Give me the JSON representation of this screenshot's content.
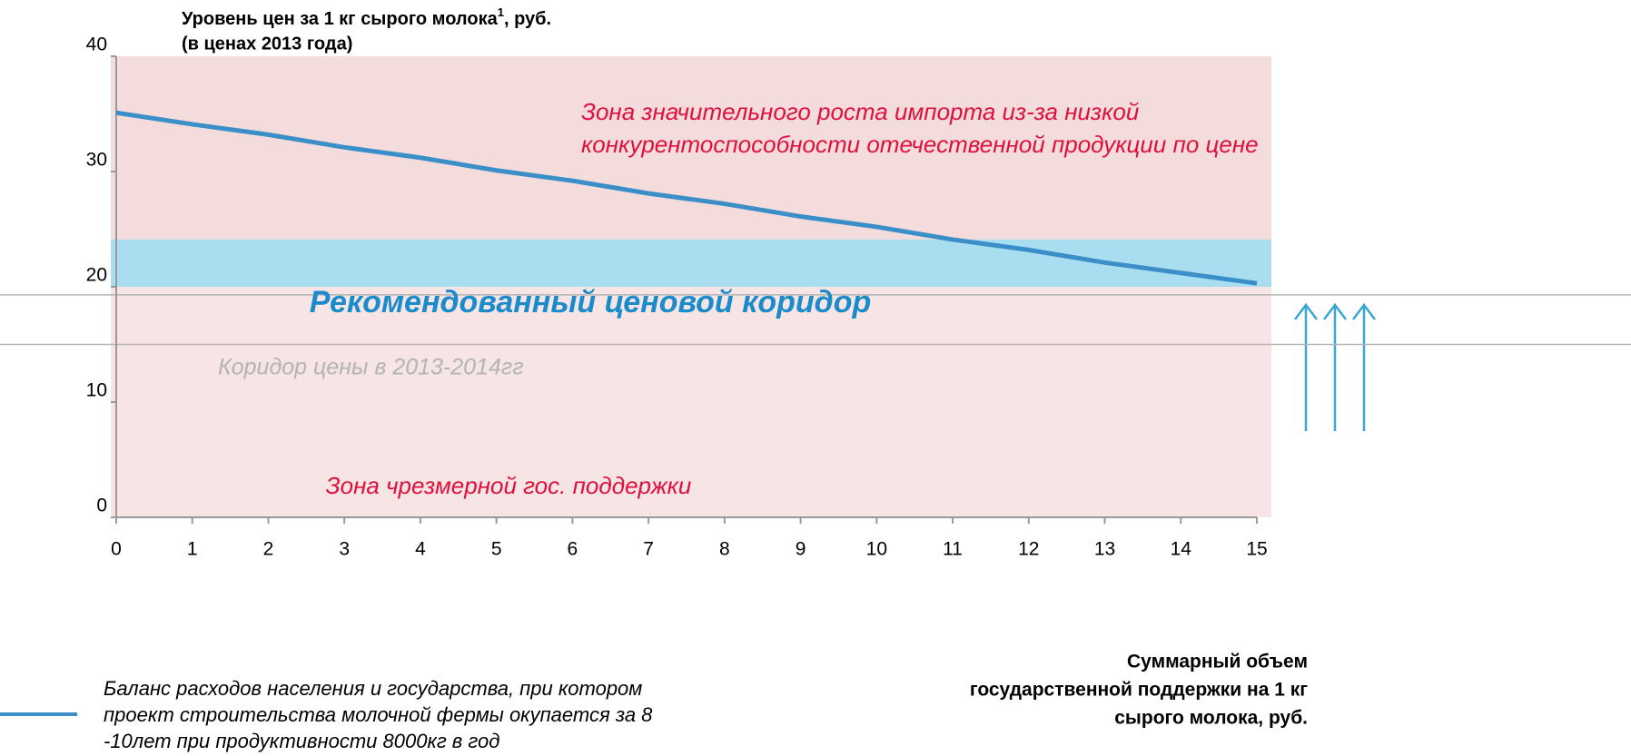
{
  "chart_data": {
    "type": "line",
    "title": [
      "Уровень цен за 1 кг сырого молока",
      "1",
      ", руб."
    ],
    "subtitle": "(в ценах 2013 года)",
    "x_label": [
      "Суммарный объем",
      "государственной поддержки на 1 кг",
      "сырого молока, руб."
    ],
    "x": [
      0,
      1,
      2,
      3,
      4,
      5,
      6,
      7,
      8,
      9,
      10,
      11,
      12,
      13,
      14,
      15
    ],
    "series": [
      {
        "name": [
          "Баланс расходов населения и государства, при котором",
          "проект строительства молочной фермы окупается за 8",
          "-10лет при продуктивности 8000кг в год"
        ],
        "color": "#3a8fc8",
        "values": [
          35.1,
          34.1,
          33.2,
          32.1,
          31.2,
          30.1,
          29.2,
          28.1,
          27.2,
          26.1,
          25.2,
          24.1,
          23.2,
          22.1,
          21.2,
          20.3
        ]
      }
    ],
    "zones": [
      {
        "label": [
          "Зона значительного роста импорта из-за низкой",
          "конкурентоспособности отечественной продукции по цене"
        ],
        "range": [
          24.1,
          40
        ],
        "color": "#f4dcdc",
        "text_color": "#e0103c"
      },
      {
        "label": [
          "Рекомендованный ценовой коридор"
        ],
        "range": [
          20,
          24.1
        ],
        "color": "#a9def1",
        "text_color": "#1a8ccc"
      },
      {
        "label": [
          "Зона чрезмерной гос. поддержки"
        ],
        "range": [
          0,
          20
        ],
        "color": "#f7e4e4",
        "text_color": "#e0103c"
      }
    ],
    "corridor": {
      "label": "Коридор цены в 2013-2014гг",
      "range": [
        15.0,
        19.3
      ],
      "color": "#b4b4b4"
    },
    "xlim": [
      0,
      15
    ],
    "xticks": [
      0,
      1,
      2,
      3,
      4,
      5,
      6,
      7,
      8,
      9,
      10,
      11,
      12,
      13,
      14,
      15
    ],
    "ylim": [
      0,
      40
    ],
    "yticks": [
      0,
      10,
      20,
      30,
      40
    ]
  }
}
